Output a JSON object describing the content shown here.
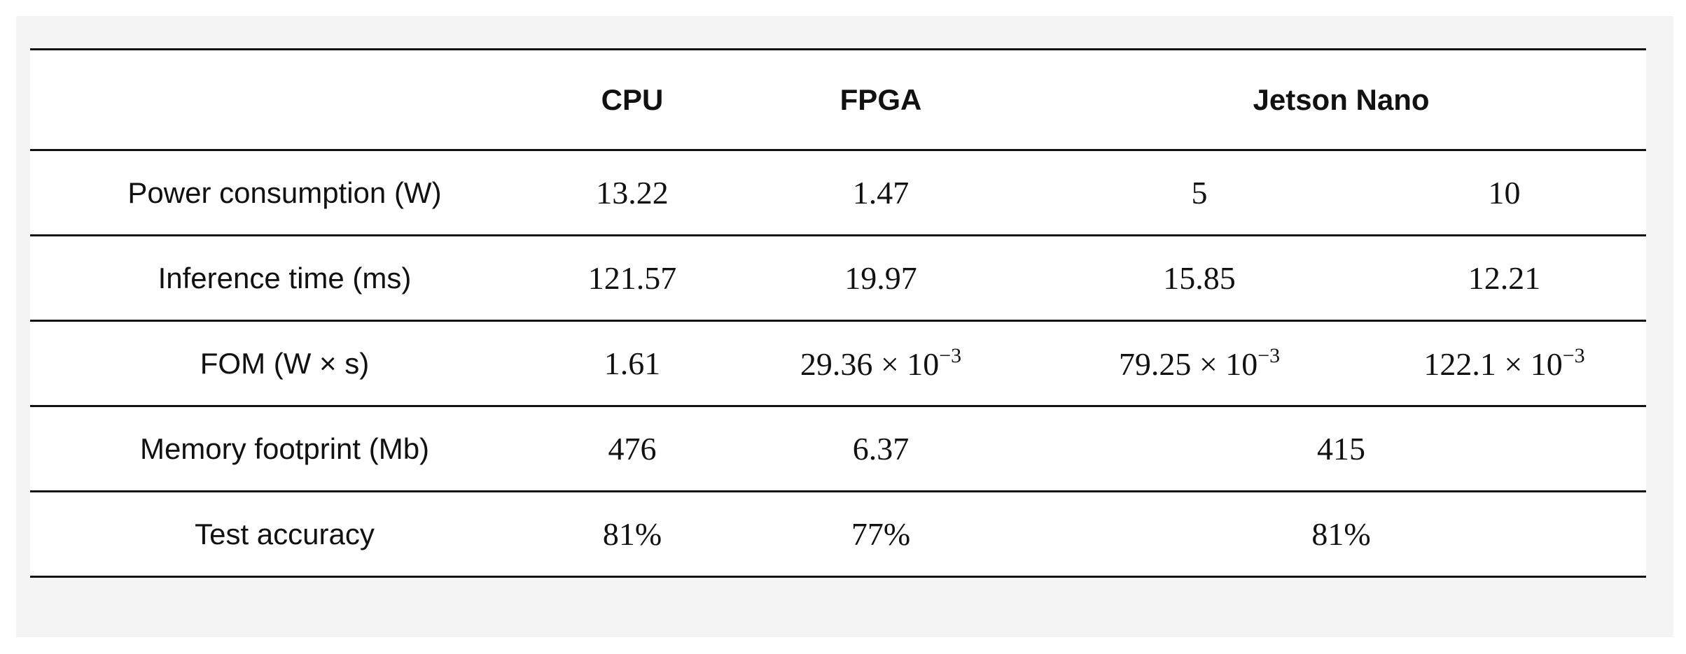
{
  "table": {
    "header": [
      "CPU",
      "FPGA",
      "Jetson Nano"
    ],
    "rows": [
      {
        "label": "Power consumption (W)",
        "cells": [
          "13.22",
          "1.47",
          "5",
          "10"
        ]
      },
      {
        "label": "Inference time (ms)",
        "cells": [
          "121.57",
          "19.97",
          "15.85",
          "12.21"
        ]
      },
      {
        "label": "FOM (W × s)",
        "cells": [
          "1.61",
          {
            "base": "29.36 × 10",
            "exponent": "−3"
          },
          {
            "base": "79.25 × 10",
            "exponent": "−3"
          },
          {
            "base": "122.1 × 10",
            "exponent": "−3"
          }
        ]
      },
      {
        "label": "Memory footprint (Mb)",
        "cells": [
          "476",
          "6.37",
          "415"
        ]
      },
      {
        "label": "Test accuracy",
        "cells": [
          "81%",
          "77%",
          "81%"
        ]
      }
    ]
  }
}
